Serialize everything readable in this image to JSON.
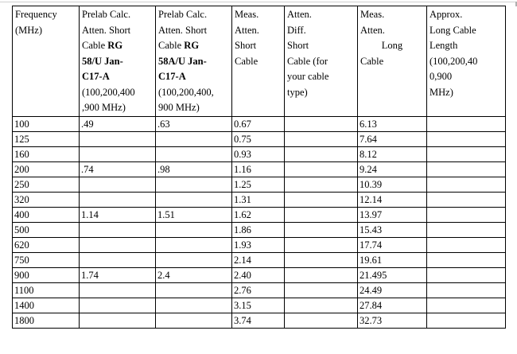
{
  "table": {
    "headers": [
      {
        "name": "header-frequency",
        "lines": [
          [
            {
              "text": "Frequency",
              "bold": false
            }
          ],
          [
            {
              "text": "(MHz)",
              "bold": false
            }
          ]
        ]
      },
      {
        "name": "header-prelab-rg58u",
        "lines": [
          [
            {
              "text": "Prelab Calc.",
              "bold": false
            }
          ],
          [
            {
              "text": "Atten. Short",
              "bold": false
            }
          ],
          [
            {
              "text": "Cable ",
              "bold": false
            },
            {
              "text": "RG",
              "bold": true
            }
          ],
          [
            {
              "text": "58/U Jan-",
              "bold": true
            }
          ],
          [
            {
              "text": "C17-A",
              "bold": true
            }
          ],
          [
            {
              "text": "(100,200,400",
              "bold": false
            }
          ],
          [
            {
              "text": ",900 MHz)",
              "bold": false
            }
          ]
        ]
      },
      {
        "name": "header-prelab-rg58au",
        "lines": [
          [
            {
              "text": "Prelab Calc.",
              "bold": false
            }
          ],
          [
            {
              "text": "Atten. Short",
              "bold": false
            }
          ],
          [
            {
              "text": "Cable ",
              "bold": false
            },
            {
              "text": "RG",
              "bold": true
            }
          ],
          [
            {
              "text": "58A/U Jan-",
              "bold": true
            }
          ],
          [
            {
              "text": "C17-A",
              "bold": true
            }
          ],
          [
            {
              "text": "(100,200,400,",
              "bold": false
            }
          ],
          [
            {
              "text": "900 MHz)",
              "bold": false
            }
          ]
        ]
      },
      {
        "name": "header-meas-short",
        "lines": [
          [
            {
              "text": "Meas.",
              "bold": false
            }
          ],
          [
            {
              "text": "Atten.",
              "bold": false
            }
          ],
          [
            {
              "text": "Short",
              "bold": false
            }
          ],
          [
            {
              "text": "Cable",
              "bold": false
            }
          ]
        ]
      },
      {
        "name": "header-atten-diff",
        "lines": [
          [
            {
              "text": "Atten.",
              "bold": false
            }
          ],
          [
            {
              "text": "Diff.",
              "bold": false
            }
          ],
          [
            {
              "text": "Short",
              "bold": false
            }
          ],
          [
            {
              "text": "Cable (for",
              "bold": false
            }
          ],
          [
            {
              "text": "your cable",
              "bold": false
            }
          ],
          [
            {
              "text": "type)",
              "bold": false
            }
          ]
        ]
      },
      {
        "name": "header-meas-long",
        "lines": [
          [
            {
              "text": "Meas.",
              "bold": false
            }
          ],
          [
            {
              "text": "Atten.",
              "bold": false
            }
          ],
          [
            {
              "text": "Long",
              "bold": false,
              "center": true
            }
          ],
          [
            {
              "text": "Cable",
              "bold": false
            }
          ]
        ]
      },
      {
        "name": "header-approx-long-length",
        "lines": [
          [
            {
              "text": "Approx.",
              "bold": false
            }
          ],
          [
            {
              "text": "Long Cable",
              "bold": false
            }
          ],
          [
            {
              "text": "Length",
              "bold": false
            }
          ],
          [
            {
              "text": "(100,200,40",
              "bold": false
            }
          ],
          [
            {
              "text": "0,900",
              "bold": false
            }
          ],
          [
            {
              "text": "MHz)",
              "bold": false
            }
          ]
        ]
      }
    ],
    "rows": [
      [
        "100",
        ".49",
        ".63",
        "0.67",
        "",
        "6.13",
        ""
      ],
      [
        "125",
        "",
        "",
        "0.75",
        "",
        "7.64",
        ""
      ],
      [
        "160",
        "",
        "",
        "0.93",
        "",
        "8.12",
        ""
      ],
      [
        "200",
        ".74",
        ".98",
        "1.16",
        "",
        "9.24",
        ""
      ],
      [
        "250",
        "",
        "",
        "1.25",
        "",
        "10.39",
        ""
      ],
      [
        "320",
        "",
        "",
        "1.31",
        "",
        "12.14",
        ""
      ],
      [
        "400",
        "1.14",
        "1.51",
        "1.62",
        "",
        "13.97",
        ""
      ],
      [
        "500",
        "",
        "",
        "1.86",
        "",
        "15.43",
        ""
      ],
      [
        "620",
        "",
        "",
        "1.93",
        "",
        "17.74",
        ""
      ],
      [
        "750",
        "",
        "",
        "2.14",
        "",
        "19.61",
        ""
      ],
      [
        "900",
        "1.74",
        "2.4",
        "2.40",
        "",
        "21.495",
        ""
      ],
      [
        "1100",
        "",
        "",
        "2.76",
        "",
        "24.49",
        ""
      ],
      [
        "1400",
        "",
        "",
        "3.15",
        "",
        "27.84",
        ""
      ],
      [
        "1800",
        "",
        "",
        "3.74",
        "",
        "32.73",
        ""
      ]
    ]
  }
}
